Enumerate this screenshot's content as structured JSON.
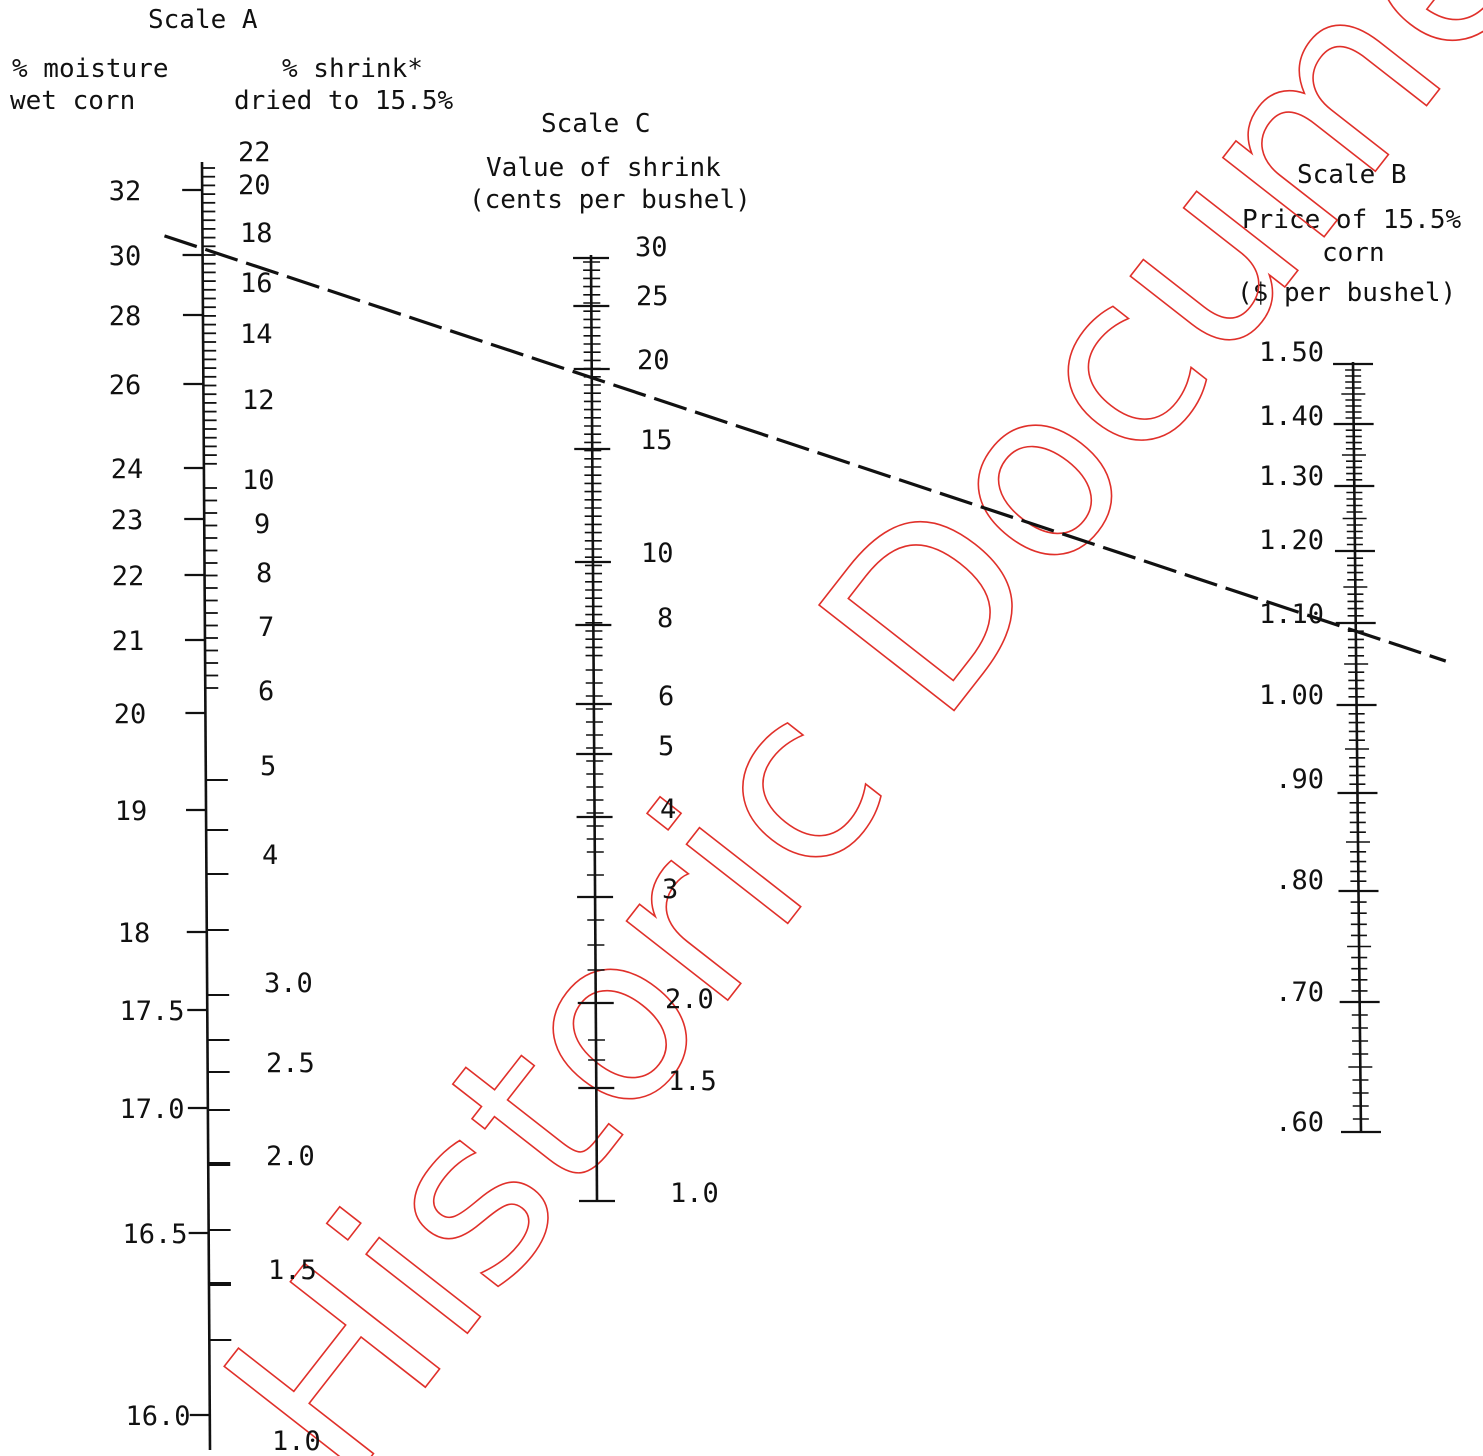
{
  "scale_a": {
    "title": "Scale A",
    "moisture_heading": [
      "% moisture",
      "wet corn"
    ],
    "shrink_heading": [
      "% shrink*",
      "dried to 15.5%"
    ],
    "moisture_labels": [
      "32",
      "30",
      "28",
      "26",
      "24",
      "23",
      "22",
      "21",
      "20",
      "19",
      "18",
      "17.5",
      "17.0",
      "16.5",
      "16.0"
    ],
    "shrink_labels": [
      "22",
      "20",
      "18",
      "16",
      "14",
      "12",
      "10",
      "9",
      "8",
      "7",
      "6",
      "5",
      "4",
      "3.0",
      "2.5",
      "2.0",
      "1.5",
      "1.0"
    ]
  },
  "scale_c": {
    "title": "Scale C",
    "heading": [
      "Value of shrink",
      "(cents per bushel)"
    ],
    "labels": [
      "30",
      "25",
      "20",
      "15",
      "10",
      "8",
      "6",
      "5",
      "4",
      "3",
      "2.0",
      "1.5",
      "1.0"
    ]
  },
  "scale_b": {
    "title": "Scale B",
    "heading": [
      "Price of 15.5%",
      "corn",
      "($ per bushel)"
    ],
    "labels": [
      "1.50",
      "1.40",
      "1.30",
      "1.20",
      "1.10",
      "1.00",
      ".90",
      ".80",
      ".70",
      ".60"
    ]
  },
  "example_line": {
    "moisture_pct": 30.2,
    "shrink_value_cents": 18.5,
    "price_dollars": 1.09
  },
  "watermark": "Historic Document",
  "colors": {
    "ink": "#111111",
    "watermark": "#e0302a"
  }
}
